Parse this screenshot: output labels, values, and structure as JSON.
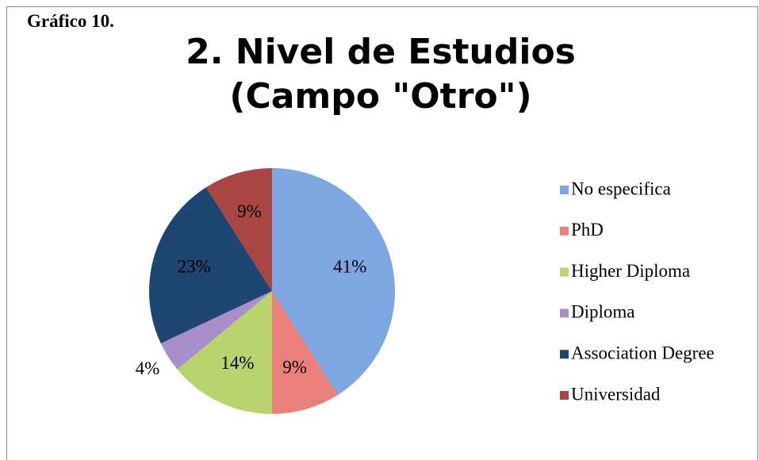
{
  "chart_data": {
    "type": "pie",
    "caption": "Gráfico 10.",
    "title": "2. Nivel de Estudios (Campo \"Otro\")",
    "categories": [
      "No especifica",
      "PhD",
      "Higher Diploma",
      "Diploma",
      "Association Degree",
      "Universidad"
    ],
    "values": [
      41,
      9,
      14,
      4,
      23,
      9
    ],
    "value_labels": [
      "41%",
      "9%",
      "14%",
      "4%",
      "23%",
      "9%"
    ],
    "colors": [
      "#7ea6e0",
      "#e9807c",
      "#b8d46f",
      "#a88fc9",
      "#1f4571",
      "#a94643"
    ],
    "legend": "right"
  }
}
